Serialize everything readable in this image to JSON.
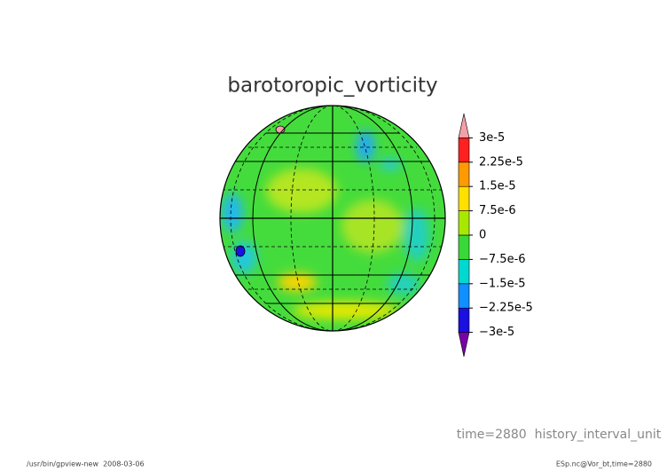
{
  "chart_data": {
    "type": "contour-map",
    "title": "barotoropic_vorticity",
    "time_label": "time=2880  history_interval_unit",
    "footer_left": "/usr/bin/gpview-new  2008-03-06",
    "footer_right": "ESp.nc@Vor_bt,time=2880",
    "ylim": [
      -3.75e-05,
      3.75e-05
    ],
    "yticks": [
      {
        "value": -3e-05,
        "label": "−3e-5"
      },
      {
        "value": -2.25e-05,
        "label": "−2.25e-5"
      },
      {
        "value": -1.5e-05,
        "label": "−1.5e-5"
      },
      {
        "value": -7.5e-06,
        "label": "−7.5e-6"
      },
      0,
      {
        "value": 7.5e-06,
        "label": "7.5e-6"
      },
      {
        "value": 1.5e-05,
        "label": "1.5e-5"
      },
      {
        "value": 2.25e-05,
        "label": "2.25e-5"
      },
      {
        "value": 3e-05,
        "label": "3e-5"
      }
    ],
    "colors": [
      "#7a00a8",
      "#1a10e0",
      "#1090ff",
      "#00d8d0",
      "#38d838",
      "#a8e800",
      "#ffe000",
      "#ff9a00",
      "#ff2020",
      "#f4a0a8"
    ]
  }
}
